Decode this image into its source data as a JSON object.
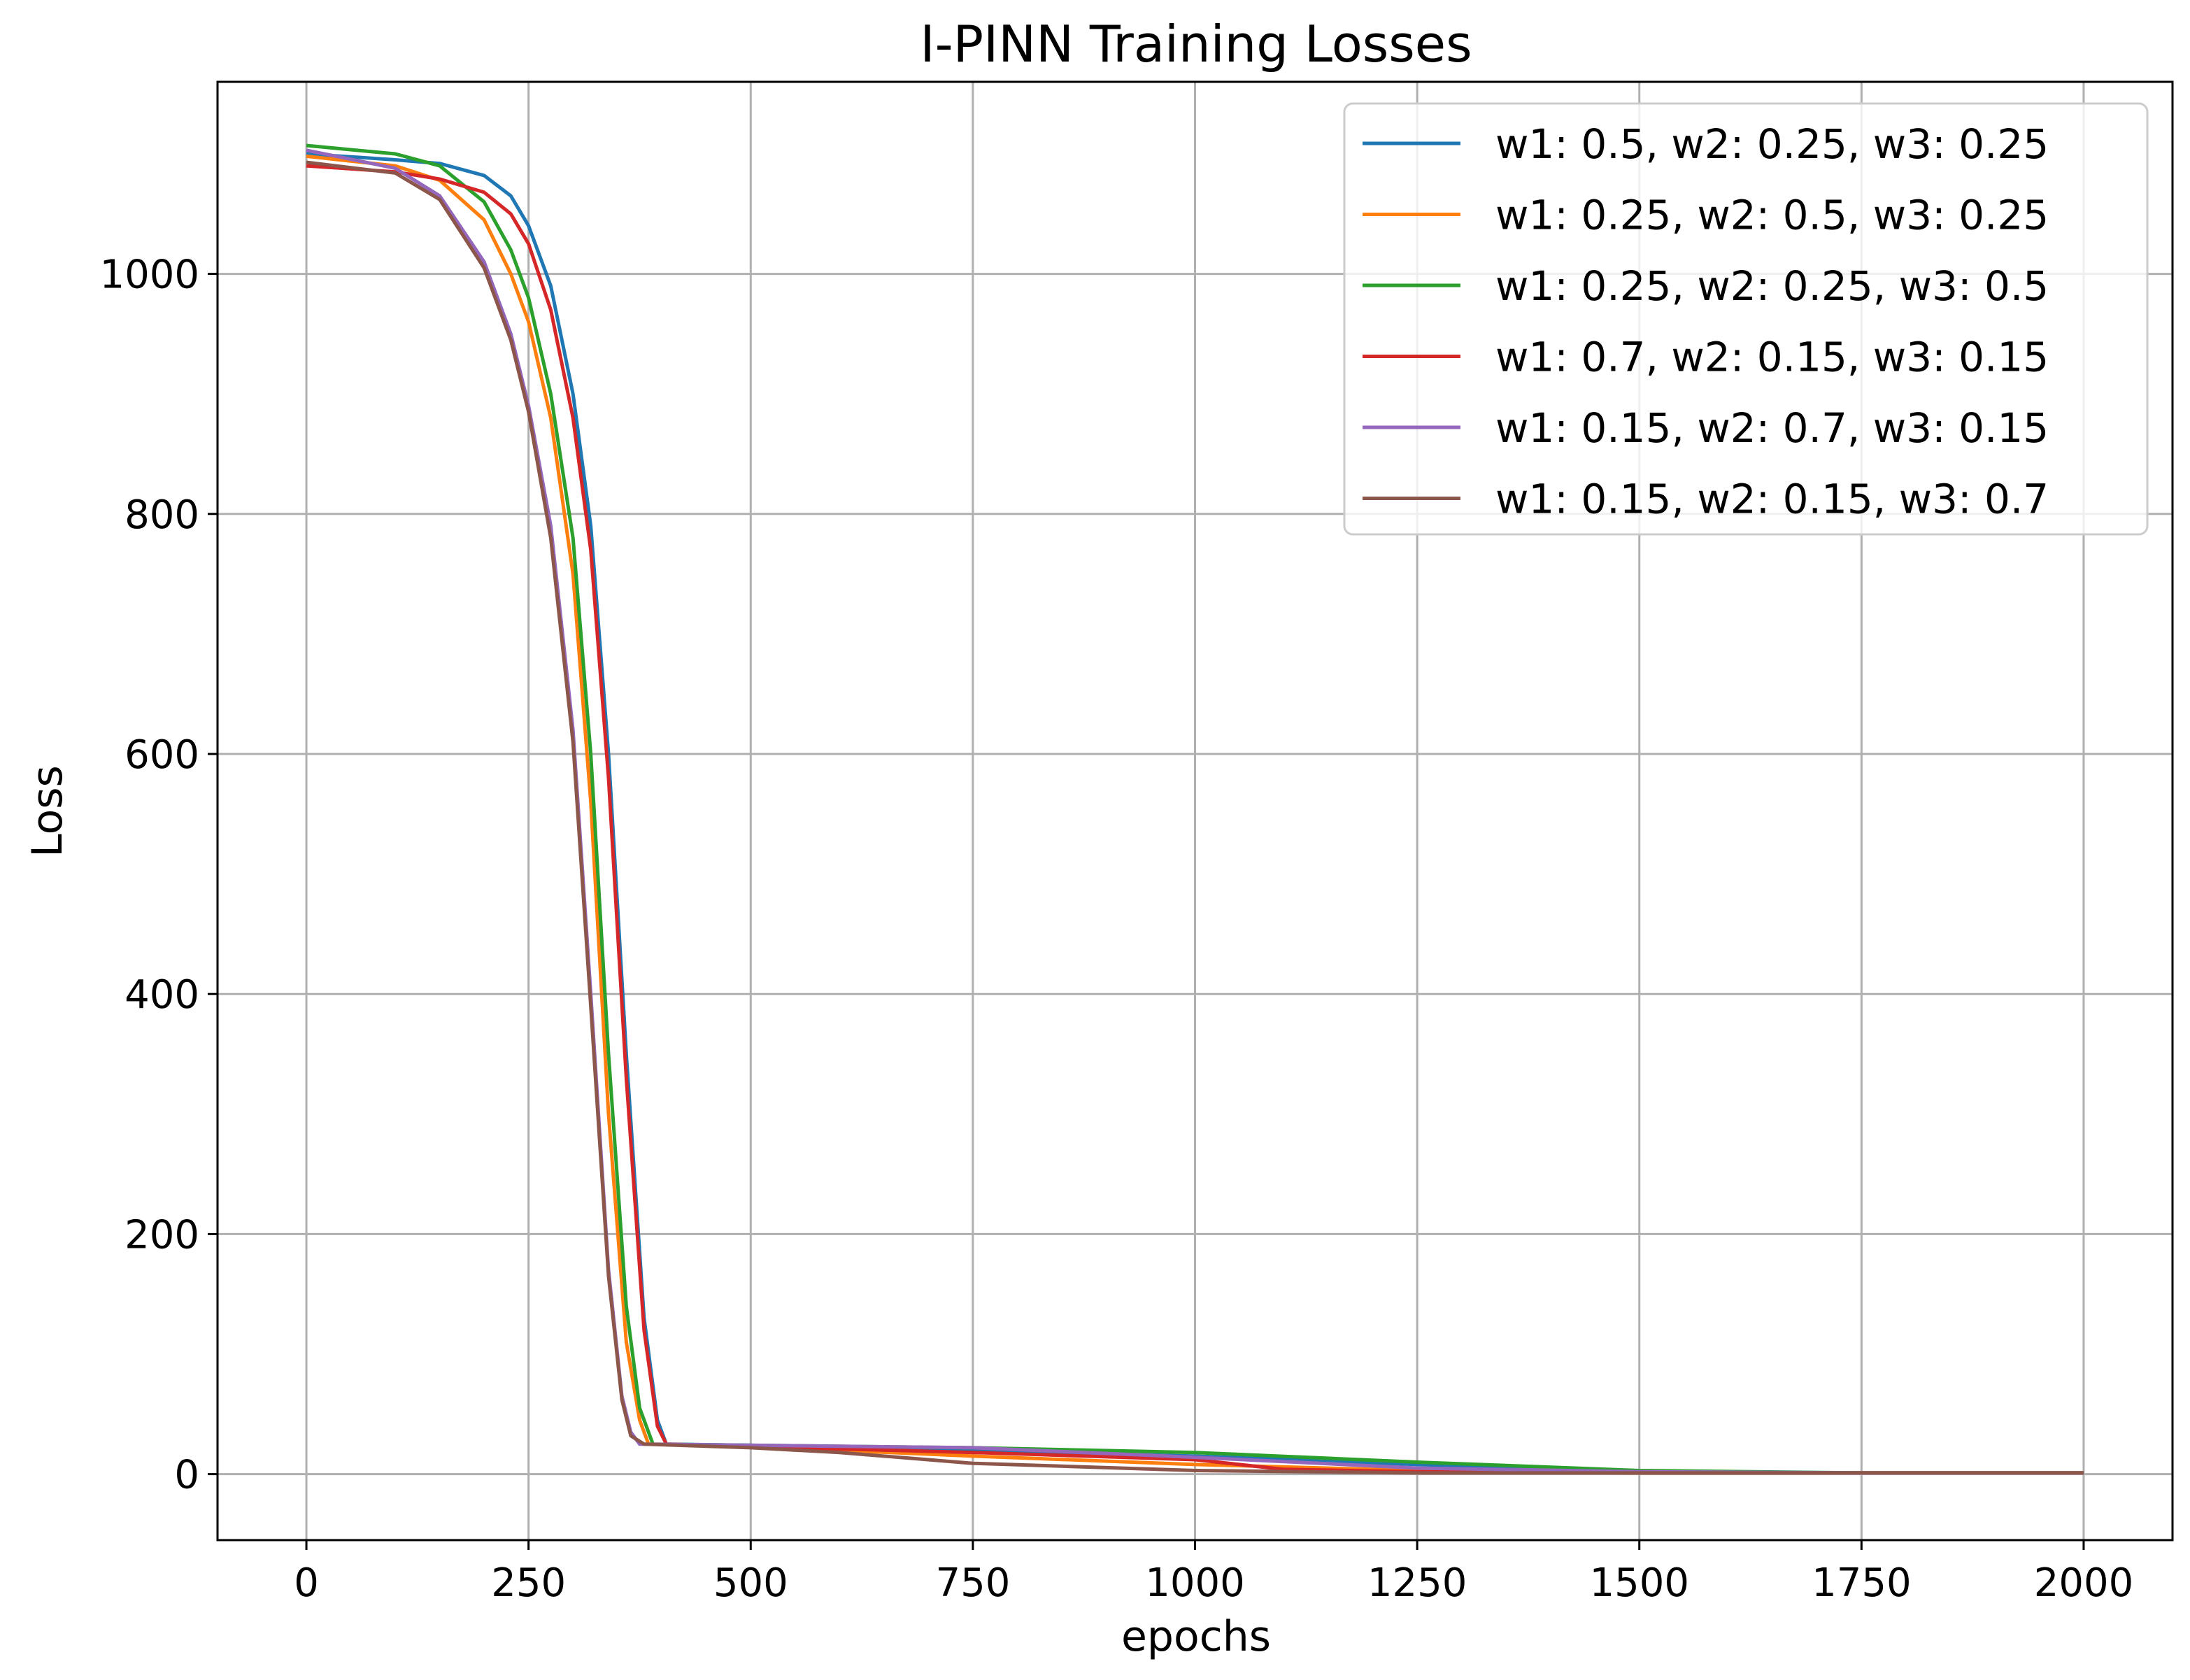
{
  "chart_data": {
    "type": "line",
    "title": "I-PINN Training Losses",
    "xlabel": "epochs",
    "ylabel": "Loss",
    "xlim": [
      -100,
      2100
    ],
    "ylim": [
      -55,
      1160
    ],
    "xticks": [
      0,
      250,
      500,
      750,
      1000,
      1250,
      1500,
      1750,
      2000
    ],
    "yticks": [
      0,
      200,
      400,
      600,
      800,
      1000
    ],
    "grid": true,
    "legend_position": "top-right",
    "series": [
      {
        "name": "w1: 0.5, w2: 0.25, w3: 0.25",
        "color": "#1f77b4",
        "points": [
          [
            0,
            1100
          ],
          [
            100,
            1095
          ],
          [
            150,
            1092
          ],
          [
            200,
            1082
          ],
          [
            230,
            1065
          ],
          [
            250,
            1040
          ],
          [
            275,
            990
          ],
          [
            300,
            900
          ],
          [
            320,
            790
          ],
          [
            340,
            600
          ],
          [
            360,
            350
          ],
          [
            380,
            130
          ],
          [
            395,
            45
          ],
          [
            405,
            25
          ],
          [
            500,
            24
          ],
          [
            750,
            20
          ],
          [
            1000,
            15
          ],
          [
            1250,
            8
          ],
          [
            1500,
            2
          ],
          [
            1750,
            1
          ],
          [
            2000,
            1
          ]
        ]
      },
      {
        "name": "w1: 0.25, w2: 0.5, w3: 0.25",
        "color": "#ff7f0e",
        "points": [
          [
            0,
            1098
          ],
          [
            100,
            1090
          ],
          [
            150,
            1078
          ],
          [
            200,
            1045
          ],
          [
            230,
            1000
          ],
          [
            250,
            960
          ],
          [
            275,
            880
          ],
          [
            300,
            750
          ],
          [
            320,
            560
          ],
          [
            340,
            300
          ],
          [
            360,
            110
          ],
          [
            375,
            45
          ],
          [
            385,
            25
          ],
          [
            500,
            23
          ],
          [
            750,
            15
          ],
          [
            1000,
            8
          ],
          [
            1250,
            3
          ],
          [
            1500,
            1
          ],
          [
            1750,
            1
          ],
          [
            2000,
            1
          ]
        ]
      },
      {
        "name": "w1: 0.25, w2: 0.25, w3: 0.5",
        "color": "#2ca02c",
        "points": [
          [
            0,
            1107
          ],
          [
            100,
            1100
          ],
          [
            150,
            1090
          ],
          [
            200,
            1060
          ],
          [
            230,
            1020
          ],
          [
            250,
            980
          ],
          [
            275,
            900
          ],
          [
            300,
            780
          ],
          [
            320,
            600
          ],
          [
            340,
            350
          ],
          [
            360,
            140
          ],
          [
            375,
            55
          ],
          [
            390,
            25
          ],
          [
            500,
            24
          ],
          [
            750,
            22
          ],
          [
            1000,
            18
          ],
          [
            1250,
            10
          ],
          [
            1500,
            3
          ],
          [
            1750,
            1
          ],
          [
            2000,
            1
          ]
        ]
      },
      {
        "name": "w1: 0.7, w2: 0.15, w3: 0.15",
        "color": "#d62728",
        "points": [
          [
            0,
            1090
          ],
          [
            100,
            1085
          ],
          [
            150,
            1079
          ],
          [
            200,
            1068
          ],
          [
            230,
            1050
          ],
          [
            250,
            1025
          ],
          [
            275,
            970
          ],
          [
            300,
            880
          ],
          [
            320,
            770
          ],
          [
            340,
            580
          ],
          [
            360,
            330
          ],
          [
            380,
            120
          ],
          [
            395,
            40
          ],
          [
            405,
            25
          ],
          [
            500,
            23
          ],
          [
            750,
            18
          ],
          [
            1000,
            12
          ],
          [
            1100,
            4
          ],
          [
            1250,
            2
          ],
          [
            1500,
            1
          ],
          [
            1750,
            1
          ],
          [
            2000,
            1
          ]
        ]
      },
      {
        "name": "w1: 0.15, w2: 0.7, w3: 0.15",
        "color": "#9467bd",
        "points": [
          [
            0,
            1103
          ],
          [
            100,
            1088
          ],
          [
            150,
            1065
          ],
          [
            200,
            1010
          ],
          [
            230,
            950
          ],
          [
            250,
            890
          ],
          [
            275,
            790
          ],
          [
            300,
            620
          ],
          [
            320,
            400
          ],
          [
            340,
            170
          ],
          [
            355,
            65
          ],
          [
            365,
            35
          ],
          [
            375,
            25
          ],
          [
            500,
            24
          ],
          [
            750,
            22
          ],
          [
            1000,
            14
          ],
          [
            1250,
            5
          ],
          [
            1500,
            2
          ],
          [
            1750,
            1
          ],
          [
            2000,
            1
          ]
        ]
      },
      {
        "name": "w1: 0.15, w2: 0.15, w3: 0.7",
        "color": "#8c564b",
        "points": [
          [
            0,
            1093
          ],
          [
            100,
            1084
          ],
          [
            150,
            1062
          ],
          [
            200,
            1005
          ],
          [
            230,
            945
          ],
          [
            250,
            885
          ],
          [
            275,
            780
          ],
          [
            300,
            610
          ],
          [
            320,
            390
          ],
          [
            340,
            165
          ],
          [
            355,
            62
          ],
          [
            365,
            32
          ],
          [
            380,
            25
          ],
          [
            500,
            22
          ],
          [
            600,
            18
          ],
          [
            750,
            9
          ],
          [
            1000,
            3
          ],
          [
            1250,
            1
          ],
          [
            1500,
            1
          ],
          [
            1750,
            1
          ],
          [
            2000,
            1
          ]
        ]
      }
    ]
  }
}
